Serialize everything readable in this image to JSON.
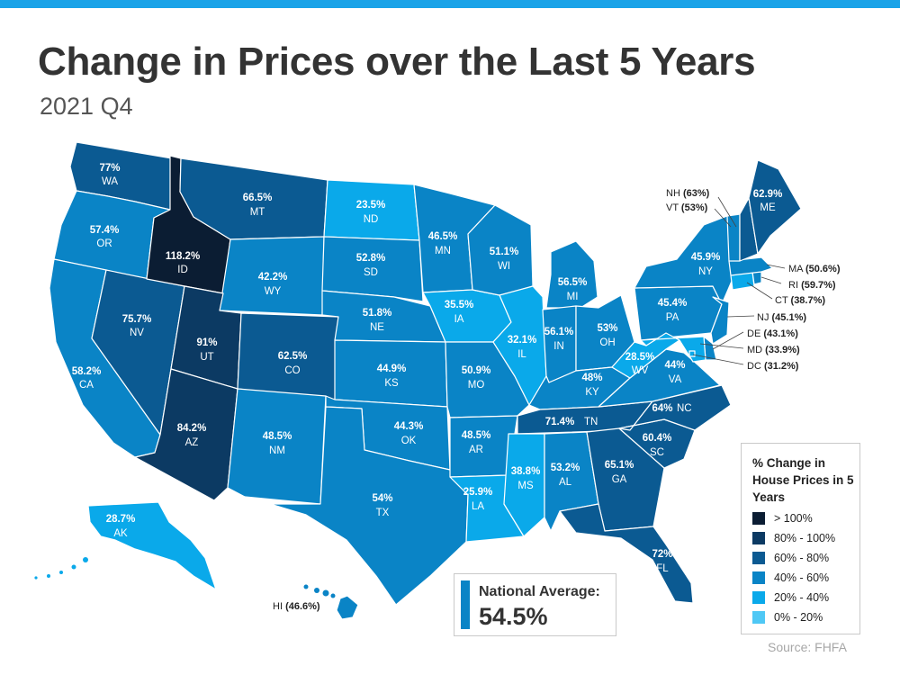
{
  "title": "Change in Prices over the Last 5 Years",
  "subtitle": "2021 Q4",
  "colors": {
    "top_bar": "#1aa3e8",
    "gt100": "#0b1d33",
    "r80_100": "#0c3a63",
    "r60_80": "#0b5a92",
    "r40_60": "#0a84c6",
    "r20_40": "#0aa9ea",
    "r0_20": "#4fc8f5"
  },
  "legend": {
    "title": "% Change in House Prices in 5 Years",
    "items": [
      {
        "label": "> 100%",
        "color": "#0b1d33"
      },
      {
        "label": "80% - 100%",
        "color": "#0c3a63"
      },
      {
        "label": "60% - 80%",
        "color": "#0b5a92"
      },
      {
        "label": "40% - 60%",
        "color": "#0a84c6"
      },
      {
        "label": "20% - 40%",
        "color": "#0aa9ea"
      },
      {
        "label": "0% - 20%",
        "color": "#4fc8f5"
      }
    ]
  },
  "national_average": {
    "label": "National Average:",
    "value": "54.5%"
  },
  "source": "Source: FHFA",
  "states": {
    "WA": {
      "pct": "77%",
      "abbr": "WA"
    },
    "OR": {
      "pct": "57.4%",
      "abbr": "OR"
    },
    "CA": {
      "pct": "58.2%",
      "abbr": "CA"
    },
    "NV": {
      "pct": "75.7%",
      "abbr": "NV"
    },
    "ID": {
      "pct": "118.2%",
      "abbr": "ID"
    },
    "MT": {
      "pct": "66.5%",
      "abbr": "MT"
    },
    "WY": {
      "pct": "42.2%",
      "abbr": "WY"
    },
    "UT": {
      "pct": "91%",
      "abbr": "UT"
    },
    "AZ": {
      "pct": "84.2%",
      "abbr": "AZ"
    },
    "CO": {
      "pct": "62.5%",
      "abbr": "CO"
    },
    "NM": {
      "pct": "48.5%",
      "abbr": "NM"
    },
    "ND": {
      "pct": "23.5%",
      "abbr": "ND"
    },
    "SD": {
      "pct": "52.8%",
      "abbr": "SD"
    },
    "NE": {
      "pct": "51.8%",
      "abbr": "NE"
    },
    "KS": {
      "pct": "44.9%",
      "abbr": "KS"
    },
    "OK": {
      "pct": "44.3%",
      "abbr": "OK"
    },
    "TX": {
      "pct": "54%",
      "abbr": "TX"
    },
    "MN": {
      "pct": "46.5%",
      "abbr": "MN"
    },
    "IA": {
      "pct": "35.5%",
      "abbr": "IA"
    },
    "MO": {
      "pct": "50.9%",
      "abbr": "MO"
    },
    "AR": {
      "pct": "48.5%",
      "abbr": "AR"
    },
    "LA": {
      "pct": "25.9%",
      "abbr": "LA"
    },
    "WI": {
      "pct": "51.1%",
      "abbr": "WI"
    },
    "IL": {
      "pct": "32.1%",
      "abbr": "IL"
    },
    "MI": {
      "pct": "56.5%",
      "abbr": "MI"
    },
    "IN": {
      "pct": "56.1%",
      "abbr": "IN"
    },
    "OH": {
      "pct": "53%",
      "abbr": "OH"
    },
    "KY": {
      "pct": "48%",
      "abbr": "KY"
    },
    "TN": {
      "pct": "71.4%",
      "abbr": "TN"
    },
    "MS": {
      "pct": "38.8%",
      "abbr": "MS"
    },
    "AL": {
      "pct": "53.2%",
      "abbr": "AL"
    },
    "GA": {
      "pct": "65.1%",
      "abbr": "GA"
    },
    "FL": {
      "pct": "72%",
      "abbr": "FL"
    },
    "SC": {
      "pct": "60.4%",
      "abbr": "SC"
    },
    "NC": {
      "pct": "64%",
      "abbr": "NC"
    },
    "VA": {
      "pct": "44%",
      "abbr": "VA"
    },
    "WV": {
      "pct": "28.5%",
      "abbr": "WV"
    },
    "PA": {
      "pct": "45.4%",
      "abbr": "PA"
    },
    "NY": {
      "pct": "45.9%",
      "abbr": "NY"
    },
    "ME": {
      "pct": "62.9%",
      "abbr": "ME"
    },
    "AK": {
      "pct": "28.7%",
      "abbr": "AK"
    },
    "NH": {
      "pct": "(63%)",
      "abbr": "NH"
    },
    "VT": {
      "pct": "(53%)",
      "abbr": "VT"
    },
    "MA": {
      "pct": "(50.6%)",
      "abbr": "MA"
    },
    "RI": {
      "pct": "(59.7%)",
      "abbr": "RI"
    },
    "CT": {
      "pct": "(38.7%)",
      "abbr": "CT"
    },
    "NJ": {
      "pct": "(45.1%)",
      "abbr": "NJ"
    },
    "DE": {
      "pct": "(43.1%)",
      "abbr": "DE"
    },
    "MD": {
      "pct": "(33.9%)",
      "abbr": "MD"
    },
    "DC": {
      "pct": "(31.2%)",
      "abbr": "DC"
    },
    "HI": {
      "pct": "(46.6%)",
      "abbr": "HI"
    }
  }
}
